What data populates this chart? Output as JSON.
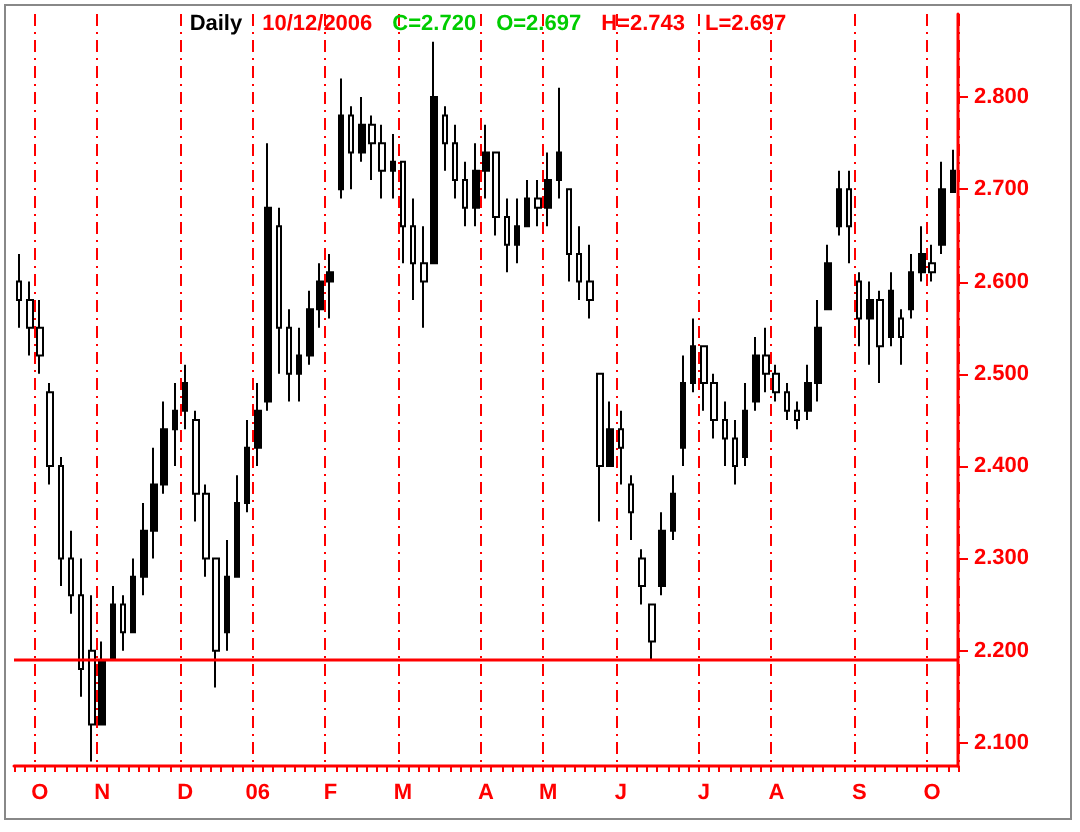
{
  "chart_data": {
    "type": "candlestick",
    "title": "Daily",
    "annotations": [
      "10/12/2006",
      "C=2.720",
      "O=2.697",
      "H=2.743",
      "L=2.697"
    ],
    "categories": [
      null,
      null,
      "O",
      null,
      null,
      null,
      null,
      null,
      "N",
      null,
      null,
      null,
      null,
      null,
      null,
      null,
      "D",
      null,
      null,
      null,
      null,
      null,
      null,
      "06",
      null,
      null,
      null,
      null,
      null,
      null,
      "F",
      null,
      null,
      null,
      null,
      null,
      null,
      "M",
      null,
      null,
      null,
      null,
      null,
      null,
      null,
      "A",
      null,
      null,
      null,
      null,
      null,
      "M",
      null,
      null,
      null,
      null,
      null,
      null,
      "J",
      null,
      null,
      null,
      null,
      null,
      null,
      null,
      "J",
      null,
      null,
      null,
      null,
      null,
      null,
      "A",
      null,
      null,
      null,
      null,
      null,
      null,
      null,
      "S",
      null,
      null,
      null,
      null,
      null,
      null,
      "O",
      null,
      null
    ],
    "series": [
      {
        "color": "#000000",
        "ohlc": [
          [
            2.6,
            2.63,
            2.55,
            2.58
          ],
          [
            2.58,
            2.6,
            2.52,
            2.55
          ],
          [
            2.55,
            2.58,
            2.5,
            2.52
          ],
          [
            2.48,
            2.49,
            2.38,
            2.4
          ],
          [
            2.4,
            2.41,
            2.27,
            2.3
          ],
          [
            2.3,
            2.33,
            2.24,
            2.26
          ],
          [
            2.26,
            2.3,
            2.15,
            2.18
          ],
          [
            2.2,
            2.26,
            2.08,
            2.12
          ],
          [
            2.12,
            2.21,
            2.12,
            2.19
          ],
          [
            2.19,
            2.27,
            2.19,
            2.25
          ],
          [
            2.25,
            2.26,
            2.2,
            2.22
          ],
          [
            2.22,
            2.3,
            2.22,
            2.28
          ],
          [
            2.28,
            2.36,
            2.26,
            2.33
          ],
          [
            2.33,
            2.42,
            2.3,
            2.38
          ],
          [
            2.38,
            2.47,
            2.37,
            2.44
          ],
          [
            2.44,
            2.49,
            2.4,
            2.46
          ],
          [
            2.46,
            2.51,
            2.44,
            2.49
          ],
          [
            2.45,
            2.46,
            2.34,
            2.37
          ],
          [
            2.37,
            2.38,
            2.28,
            2.3
          ],
          [
            2.3,
            2.3,
            2.16,
            2.2
          ],
          [
            2.22,
            2.32,
            2.2,
            2.28
          ],
          [
            2.28,
            2.39,
            2.28,
            2.36
          ],
          [
            2.36,
            2.45,
            2.35,
            2.42
          ],
          [
            2.42,
            2.49,
            2.4,
            2.46
          ],
          [
            2.47,
            2.75,
            2.46,
            2.68
          ],
          [
            2.66,
            2.68,
            2.5,
            2.55
          ],
          [
            2.55,
            2.57,
            2.47,
            2.5
          ],
          [
            2.5,
            2.55,
            2.47,
            2.52
          ],
          [
            2.52,
            2.59,
            2.51,
            2.57
          ],
          [
            2.57,
            2.62,
            2.55,
            2.6
          ],
          [
            2.6,
            2.63,
            2.56,
            2.61
          ],
          [
            2.7,
            2.82,
            2.69,
            2.78
          ],
          [
            2.78,
            2.79,
            2.7,
            2.74
          ],
          [
            2.74,
            2.8,
            2.73,
            2.77
          ],
          [
            2.77,
            2.78,
            2.71,
            2.75
          ],
          [
            2.75,
            2.77,
            2.69,
            2.72
          ],
          [
            2.72,
            2.76,
            2.69,
            2.73
          ],
          [
            2.73,
            2.73,
            2.62,
            2.66
          ],
          [
            2.66,
            2.69,
            2.58,
            2.62
          ],
          [
            2.62,
            2.66,
            2.55,
            2.6
          ],
          [
            2.62,
            2.86,
            2.62,
            2.8
          ],
          [
            2.78,
            2.79,
            2.72,
            2.75
          ],
          [
            2.75,
            2.77,
            2.69,
            2.71
          ],
          [
            2.71,
            2.73,
            2.66,
            2.68
          ],
          [
            2.68,
            2.75,
            2.66,
            2.72
          ],
          [
            2.72,
            2.77,
            2.69,
            2.74
          ],
          [
            2.74,
            2.74,
            2.65,
            2.67
          ],
          [
            2.67,
            2.69,
            2.61,
            2.64
          ],
          [
            2.64,
            2.69,
            2.62,
            2.66
          ],
          [
            2.66,
            2.71,
            2.66,
            2.69
          ],
          [
            2.69,
            2.71,
            2.66,
            2.68
          ],
          [
            2.68,
            2.74,
            2.66,
            2.71
          ],
          [
            2.71,
            2.81,
            2.69,
            2.74
          ],
          [
            2.7,
            2.7,
            2.6,
            2.63
          ],
          [
            2.63,
            2.66,
            2.58,
            2.6
          ],
          [
            2.6,
            2.64,
            2.56,
            2.58
          ],
          [
            2.5,
            2.5,
            2.34,
            2.4
          ],
          [
            2.4,
            2.47,
            2.4,
            2.44
          ],
          [
            2.44,
            2.46,
            2.38,
            2.42
          ],
          [
            2.38,
            2.39,
            2.32,
            2.35
          ],
          [
            2.3,
            2.31,
            2.25,
            2.27
          ],
          [
            2.25,
            2.25,
            2.19,
            2.21
          ],
          [
            2.27,
            2.35,
            2.26,
            2.33
          ],
          [
            2.33,
            2.39,
            2.32,
            2.37
          ],
          [
            2.42,
            2.52,
            2.4,
            2.49
          ],
          [
            2.49,
            2.56,
            2.48,
            2.53
          ],
          [
            2.53,
            2.53,
            2.46,
            2.49
          ],
          [
            2.49,
            2.5,
            2.43,
            2.45
          ],
          [
            2.45,
            2.47,
            2.4,
            2.43
          ],
          [
            2.43,
            2.45,
            2.38,
            2.4
          ],
          [
            2.41,
            2.49,
            2.4,
            2.46
          ],
          [
            2.47,
            2.54,
            2.46,
            2.52
          ],
          [
            2.52,
            2.55,
            2.48,
            2.5
          ],
          [
            2.5,
            2.51,
            2.47,
            2.48
          ],
          [
            2.48,
            2.49,
            2.45,
            2.46
          ],
          [
            2.46,
            2.47,
            2.44,
            2.45
          ],
          [
            2.46,
            2.51,
            2.45,
            2.49
          ],
          [
            2.49,
            2.58,
            2.47,
            2.55
          ],
          [
            2.57,
            2.64,
            2.57,
            2.62
          ],
          [
            2.66,
            2.72,
            2.65,
            2.7
          ],
          [
            2.7,
            2.72,
            2.62,
            2.66
          ],
          [
            2.6,
            2.61,
            2.53,
            2.56
          ],
          [
            2.56,
            2.6,
            2.51,
            2.58
          ],
          [
            2.58,
            2.59,
            2.49,
            2.53
          ],
          [
            2.54,
            2.61,
            2.53,
            2.59
          ],
          [
            2.56,
            2.57,
            2.51,
            2.54
          ],
          [
            2.57,
            2.63,
            2.56,
            2.61
          ],
          [
            2.61,
            2.66,
            2.6,
            2.63
          ],
          [
            2.62,
            2.64,
            2.6,
            2.61
          ],
          [
            2.64,
            2.73,
            2.63,
            2.7
          ],
          [
            2.697,
            2.743,
            2.697,
            2.72
          ]
        ]
      }
    ],
    "ylim": [
      2.075,
      2.89
    ],
    "yticks": [
      {
        "value": 2.1,
        "label": "2.100"
      },
      {
        "value": 2.2,
        "label": "2.200"
      },
      {
        "value": 2.3,
        "label": "2.300"
      },
      {
        "value": 2.4,
        "label": "2.400"
      },
      {
        "value": 2.5,
        "label": "2.500"
      },
      {
        "value": 2.6,
        "label": "2.600"
      },
      {
        "value": 2.7,
        "label": "2.700"
      },
      {
        "value": 2.8,
        "label": "2.800"
      }
    ],
    "ref_lines": [
      {
        "axis": "y",
        "value": 2.19,
        "color": "#ff0000"
      }
    ],
    "grid": "x"
  }
}
